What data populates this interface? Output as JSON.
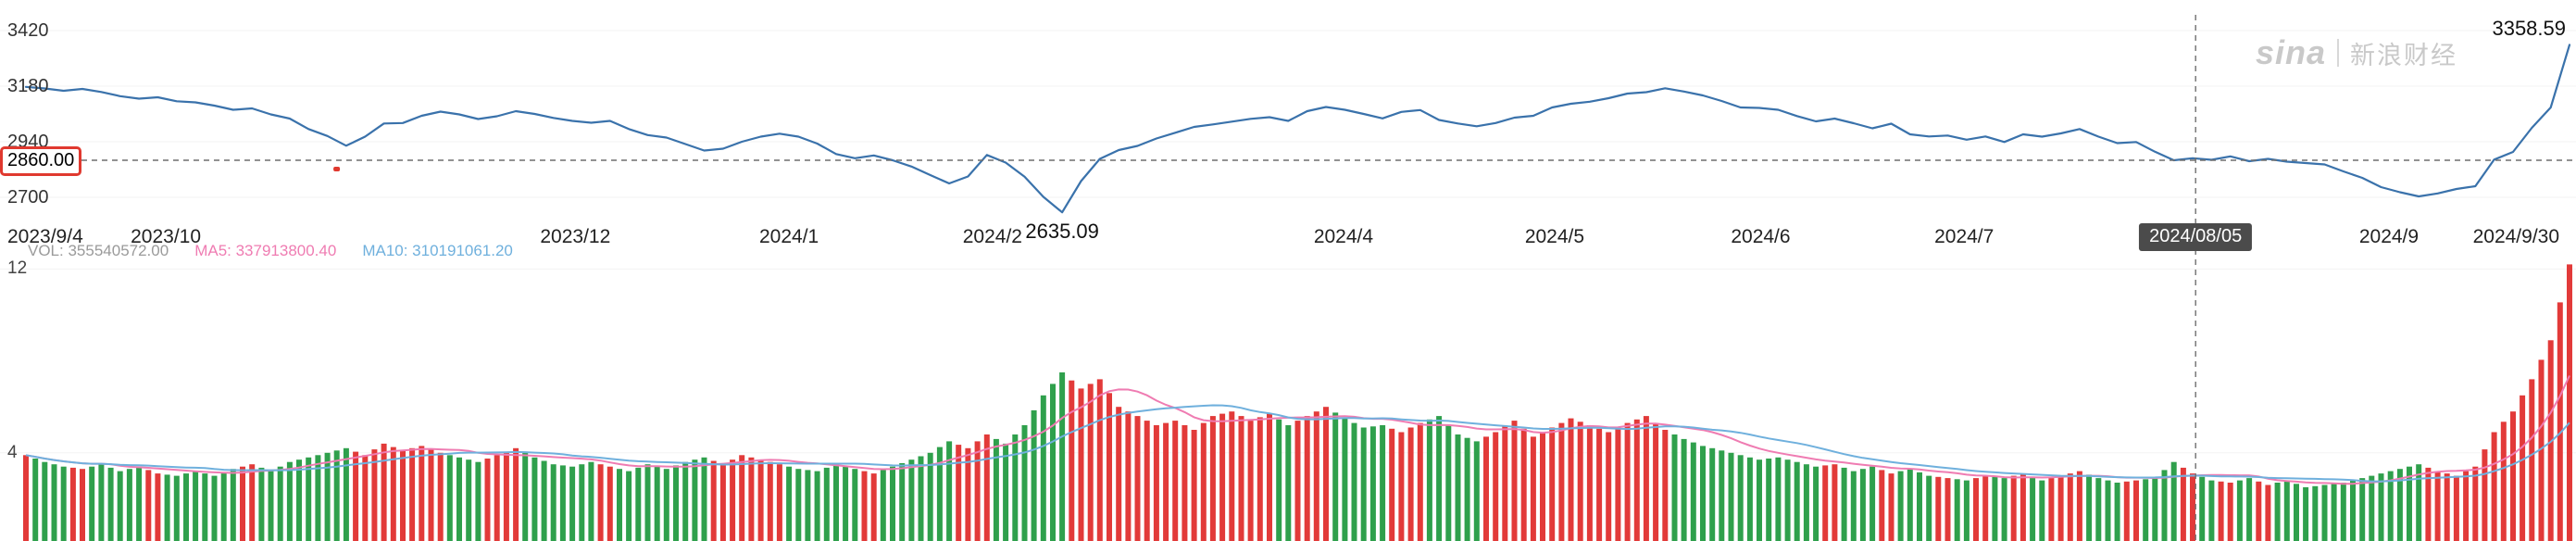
{
  "watermark": {
    "logo": "sina",
    "brand": "新浪财经"
  },
  "chart_data": {
    "type": "line",
    "title": "",
    "xlabel": "",
    "ylabel": "",
    "ylim": [
      2700,
      3420
    ],
    "y_ticks": [
      3420,
      3180,
      2940,
      2700
    ],
    "x_ticks": [
      {
        "label": "2023/9/4",
        "pos": 0.0,
        "align": "left"
      },
      {
        "label": "2023/10",
        "pos": 0.055
      },
      {
        "label": "2023/12",
        "pos": 0.216
      },
      {
        "label": "2024/1",
        "pos": 0.3
      },
      {
        "label": "2024/2",
        "pos": 0.38
      },
      {
        "label": "2024/4",
        "pos": 0.518
      },
      {
        "label": "2024/5",
        "pos": 0.601
      },
      {
        "label": "2024/6",
        "pos": 0.682
      },
      {
        "label": "2024/7",
        "pos": 0.762
      },
      {
        "label": "2024/08/05",
        "pos": 0.853,
        "highlighted": true
      },
      {
        "label": "2024/9",
        "pos": 0.929
      },
      {
        "label": "2024/9/30",
        "pos": 0.979
      }
    ],
    "series": [
      {
        "name": "index-price",
        "color": "#3a72ab",
        "values": [
          3177,
          3170,
          3160,
          3168,
          3155,
          3137,
          3126,
          3132,
          3115,
          3110,
          3096,
          3078,
          3084,
          3058,
          3040,
          2995,
          2965,
          2923,
          2962,
          3019,
          3021,
          3052,
          3070,
          3058,
          3038,
          3050,
          3072,
          3060,
          3043,
          3030,
          3022,
          3030,
          2995,
          2969,
          2958,
          2930,
          2902,
          2910,
          2940,
          2962,
          2975,
          2962,
          2932,
          2887,
          2869,
          2881,
          2860,
          2833,
          2796,
          2760,
          2790,
          2883,
          2850,
          2789,
          2702,
          2635.09,
          2770,
          2866,
          2904,
          2922,
          2954,
          2979,
          3004,
          3015,
          3027,
          3039,
          3046,
          3030,
          3072,
          3090,
          3078,
          3060,
          3041,
          3069,
          3077,
          3034,
          3019,
          3007,
          3021,
          3044,
          3052,
          3088,
          3104,
          3113,
          3128,
          3148,
          3154,
          3171,
          3157,
          3140,
          3116,
          3088,
          3086,
          3078,
          3051,
          3028,
          3040,
          3020,
          2998,
          3018,
          2972,
          2963,
          2967,
          2949,
          2963,
          2939,
          2972,
          2962,
          2976,
          2995,
          2962,
          2934,
          2939,
          2897,
          2860,
          2869,
          2862,
          2877,
          2856,
          2866,
          2854,
          2848,
          2842,
          2812,
          2784,
          2744,
          2722,
          2704,
          2717,
          2736,
          2748,
          2863,
          2896,
          3000,
          3088,
          3358.59
        ]
      }
    ],
    "annotations": {
      "low": {
        "label": "2635.09",
        "index": 55,
        "value": 2635.09
      },
      "high": {
        "label": "3358.59",
        "index": 135,
        "value": 3358.59
      }
    },
    "crosshair": {
      "price_label": "2860.00",
      "price_value": 2860,
      "date_label": "2024/08/05",
      "pos": 0.853
    },
    "marker_dot": {
      "pos": 0.122,
      "value": 2824,
      "color": "#e0392f"
    }
  },
  "volume_pane": {
    "vol_label": "VOL: 355540572.00",
    "ma5_label": "MA5: 337913800.40",
    "ma10_label": "MA10: 310191061.20",
    "y_ticks": [
      12,
      4
    ],
    "up_color": "#e23a39",
    "down_color": "#2fa04c",
    "ma5_color": "#ef7cb2",
    "ma10_color": "#6fb0dd",
    "values": [
      3.9,
      3.6,
      3.4,
      3.3,
      3.5,
      3.2,
      3.4,
      3.1,
      3.0,
      3.2,
      3.0,
      3.3,
      3.5,
      3.2,
      3.6,
      3.8,
      4.0,
      4.2,
      3.9,
      4.4,
      4.1,
      4.3,
      4.0,
      3.8,
      3.6,
      3.9,
      4.2,
      3.8,
      3.5,
      3.4,
      3.6,
      3.4,
      3.2,
      3.5,
      3.3,
      3.6,
      3.8,
      3.5,
      3.9,
      3.7,
      3.5,
      3.3,
      3.2,
      3.5,
      3.3,
      3.1,
      3.4,
      3.7,
      4.0,
      4.5,
      4.2,
      4.8,
      4.4,
      5.2,
      6.5,
      7.5,
      6.8,
      7.2,
      6.0,
      5.6,
      5.2,
      5.4,
      5.0,
      5.6,
      5.8,
      5.4,
      5.7,
      5.2,
      5.6,
      6.0,
      5.5,
      5.1,
      5.2,
      4.9,
      5.3,
      5.6,
      4.8,
      4.5,
      4.9,
      5.4,
      4.7,
      5.1,
      5.5,
      5.2,
      4.9,
      5.3,
      5.6,
      5.0,
      4.6,
      4.3,
      4.1,
      3.9,
      3.7,
      3.8,
      3.6,
      3.4,
      3.5,
      3.2,
      3.4,
      3.1,
      3.3,
      3.0,
      2.9,
      2.8,
      3.0,
      2.9,
      3.1,
      2.8,
      3.0,
      3.2,
      2.9,
      2.7,
      2.8,
      2.9,
      3.6,
      3.1,
      2.8,
      2.7,
      2.9,
      2.6,
      2.8,
      2.5,
      2.6,
      2.7,
      2.9,
      3.1,
      3.3,
      3.5,
      3.2,
      3.0,
      3.4,
      4.9,
      5.8,
      7.2,
      8.9,
      12.2
    ]
  }
}
